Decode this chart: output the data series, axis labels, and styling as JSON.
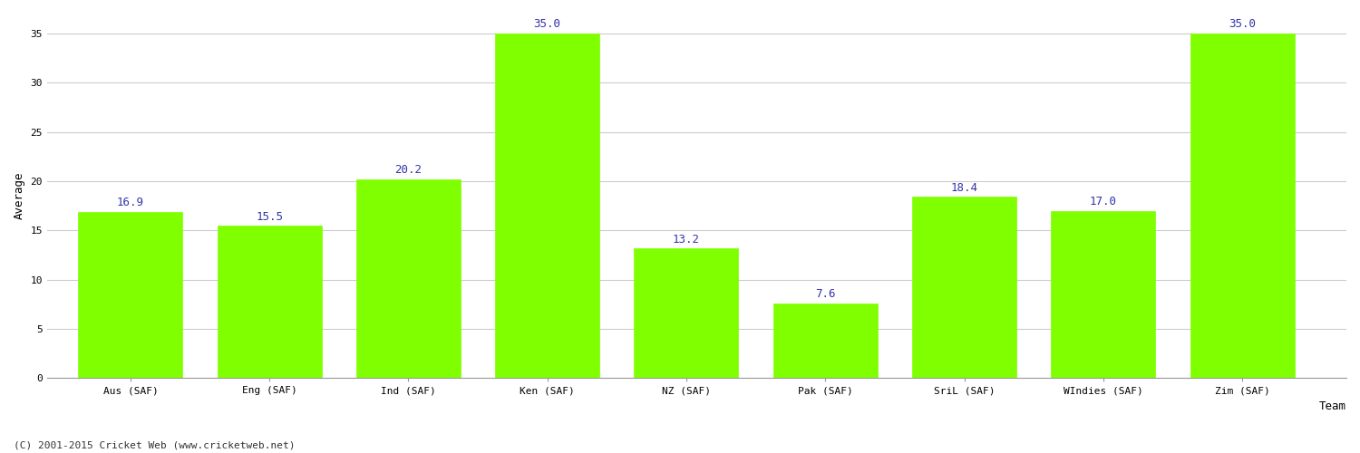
{
  "categories": [
    "Aus (SAF)",
    "Eng (SAF)",
    "Ind (SAF)",
    "Ken (SAF)",
    "NZ (SAF)",
    "Pak (SAF)",
    "SriL (SAF)",
    "WIndies (SAF)",
    "Zim (SAF)"
  ],
  "values": [
    16.9,
    15.5,
    20.2,
    35.0,
    13.2,
    7.6,
    18.4,
    17.0,
    35.0
  ],
  "bar_color": "#7FFF00",
  "bar_edge_color": "#7FFF00",
  "label_color": "#3333AA",
  "xlabel": "Team",
  "ylabel": "Average",
  "ylim": [
    0,
    37
  ],
  "yticks": [
    0,
    5,
    10,
    15,
    20,
    25,
    30,
    35
  ],
  "grid_color": "#CCCCCC",
  "background_color": "#FFFFFF",
  "footnote": "(C) 2001-2015 Cricket Web (www.cricketweb.net)",
  "label_fontsize": 9,
  "axis_label_fontsize": 9,
  "tick_fontsize": 8,
  "footnote_fontsize": 8,
  "bar_width": 0.75
}
